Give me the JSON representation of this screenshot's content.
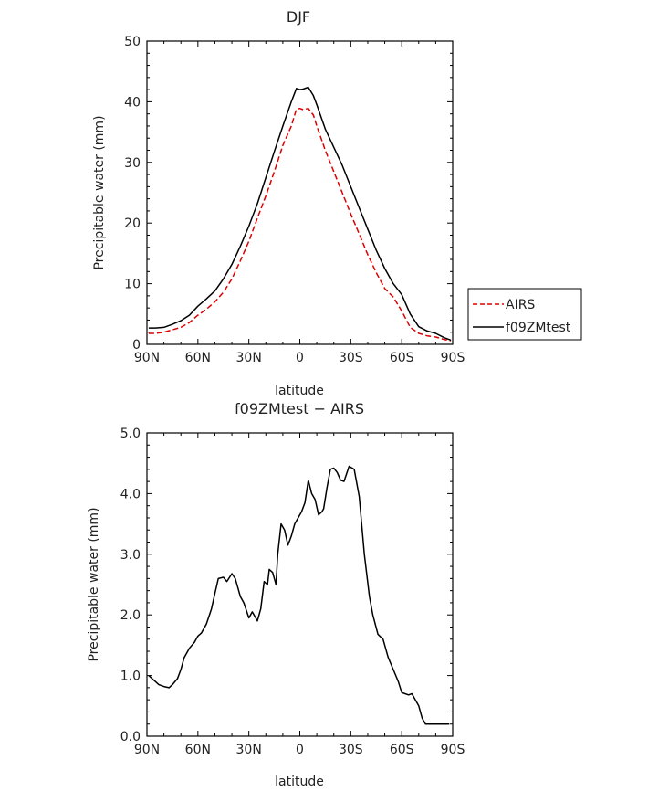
{
  "chart_data": [
    {
      "type": "line",
      "title": "DJF",
      "xlabel": "latitude",
      "ylabel": "Precipitable water (mm)",
      "xlim": [
        90,
        -90
      ],
      "ylim": [
        0,
        50
      ],
      "x_ticks": [
        90,
        60,
        30,
        0,
        -30,
        -60,
        -90
      ],
      "x_ticklabels": [
        "90N",
        "60N",
        "30N",
        "0",
        "30S",
        "60S",
        "90S"
      ],
      "y_ticks": [
        0,
        10,
        20,
        30,
        40,
        50
      ],
      "y_ticklabels": [
        "0",
        "10",
        "20",
        "30",
        "40",
        "50"
      ],
      "legend_position": "right",
      "series": [
        {
          "name": "AIRS",
          "color": "#dd0000",
          "dash": "dashed",
          "x": [
            89,
            85,
            80,
            75,
            70,
            65,
            60,
            55,
            50,
            45,
            40,
            35,
            30,
            25,
            20,
            15,
            10,
            5,
            2,
            0,
            -2,
            -5,
            -8,
            -10,
            -15,
            -20,
            -25,
            -30,
            -35,
            -40,
            -45,
            -50,
            -55,
            -60,
            -65,
            -70,
            -75,
            -80,
            -85,
            -89
          ],
          "values": [
            1.8,
            1.8,
            2.0,
            2.4,
            2.8,
            3.6,
            4.8,
            5.8,
            7.0,
            8.6,
            10.8,
            13.8,
            17.0,
            20.8,
            24.5,
            28.5,
            32.8,
            36.0,
            38.8,
            38.9,
            38.7,
            38.9,
            37.8,
            36.0,
            32.0,
            28.5,
            25.0,
            21.5,
            18.2,
            14.8,
            11.8,
            9.2,
            7.8,
            5.5,
            2.8,
            1.8,
            1.4,
            1.2,
            0.8,
            0.6
          ]
        },
        {
          "name": "f09ZMtest",
          "color": "#000000",
          "dash": "solid",
          "x": [
            89,
            85,
            80,
            75,
            70,
            65,
            60,
            55,
            50,
            45,
            40,
            35,
            30,
            25,
            20,
            15,
            10,
            5,
            2,
            0,
            -2,
            -5,
            -8,
            -10,
            -15,
            -20,
            -25,
            -30,
            -35,
            -40,
            -45,
            -50,
            -55,
            -60,
            -65,
            -70,
            -75,
            -80,
            -85,
            -89
          ],
          "values": [
            2.7,
            2.7,
            2.8,
            3.3,
            3.9,
            4.8,
            6.3,
            7.5,
            8.8,
            10.8,
            13.2,
            16.2,
            19.5,
            23.2,
            27.5,
            31.8,
            36.0,
            40.0,
            42.2,
            42.0,
            42.1,
            42.4,
            41.0,
            39.5,
            35.5,
            32.5,
            29.5,
            26.0,
            22.5,
            19.0,
            15.5,
            12.5,
            10.0,
            8.2,
            5.0,
            2.9,
            2.2,
            1.8,
            1.1,
            0.7
          ]
        }
      ]
    },
    {
      "type": "line",
      "title": "f09ZMtest − AIRS",
      "xlabel": "latitude",
      "ylabel": "Precipitable water (mm)",
      "xlim": [
        90,
        -90
      ],
      "ylim": [
        0,
        5
      ],
      "x_ticks": [
        90,
        60,
        30,
        0,
        -30,
        -60,
        -90
      ],
      "x_ticklabels": [
        "90N",
        "60N",
        "30N",
        "0",
        "30S",
        "60S",
        "90S"
      ],
      "y_ticks": [
        0,
        1,
        2,
        3,
        4,
        5
      ],
      "y_ticklabels": [
        "0.0",
        "1.0",
        "2.0",
        "3.0",
        "4.0",
        "5.0"
      ],
      "series": [
        {
          "color": "#000000",
          "dash": "solid",
          "x": [
            89,
            87,
            85,
            83,
            80,
            77,
            75,
            72,
            70,
            68,
            65,
            62,
            60,
            58,
            55,
            52,
            50,
            48,
            45,
            43,
            40,
            38,
            35,
            33,
            30,
            28,
            25,
            23,
            21,
            19,
            18,
            16,
            14,
            13,
            11,
            9,
            7,
            5,
            3,
            1,
            -1,
            -3,
            -5,
            -7,
            -9,
            -11,
            -13,
            -14,
            -16,
            -18,
            -20,
            -22,
            -24,
            -26,
            -29,
            -32,
            -35,
            -38,
            -41,
            -43,
            -46,
            -49,
            -52,
            -55,
            -58,
            -60,
            -62,
            -64,
            -66,
            -68,
            -70,
            -72,
            -74,
            -76,
            -78,
            -81,
            -84,
            -86,
            -88
          ],
          "values": [
            1.0,
            0.95,
            0.9,
            0.85,
            0.82,
            0.8,
            0.85,
            0.95,
            1.1,
            1.3,
            1.45,
            1.55,
            1.65,
            1.7,
            1.85,
            2.1,
            2.35,
            2.6,
            2.62,
            2.55,
            2.68,
            2.6,
            2.3,
            2.2,
            1.95,
            2.05,
            1.9,
            2.1,
            2.55,
            2.5,
            2.75,
            2.7,
            2.5,
            3.0,
            3.5,
            3.4,
            3.15,
            3.3,
            3.5,
            3.6,
            3.7,
            3.85,
            4.22,
            4.0,
            3.9,
            3.65,
            3.7,
            3.75,
            4.1,
            4.4,
            4.42,
            4.35,
            4.22,
            4.2,
            4.45,
            4.4,
            3.95,
            3.0,
            2.3,
            2.0,
            1.68,
            1.6,
            1.3,
            1.1,
            0.9,
            0.72,
            0.7,
            0.68,
            0.7,
            0.6,
            0.5,
            0.3,
            0.2,
            0.2,
            0.2,
            0.2,
            0.2,
            0.2,
            0.2
          ]
        }
      ]
    }
  ]
}
